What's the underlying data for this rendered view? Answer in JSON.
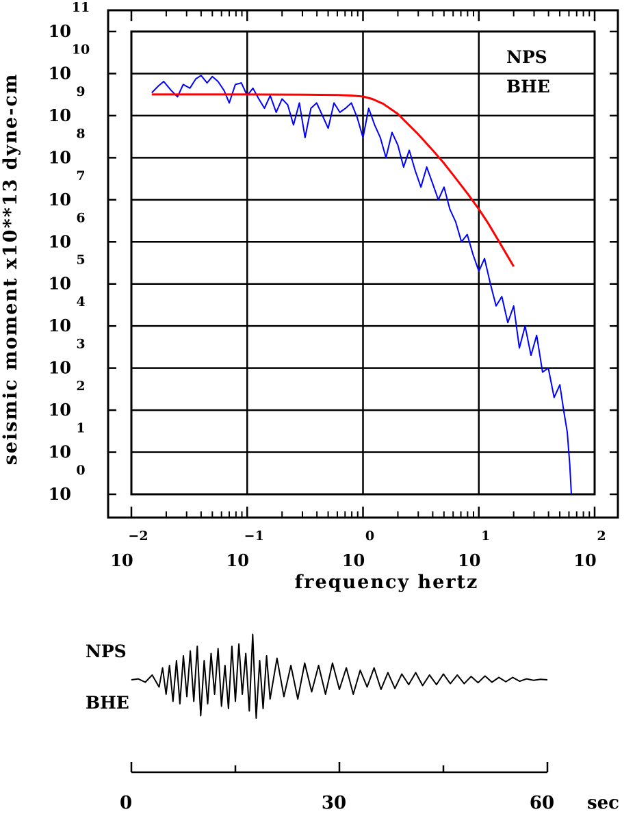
{
  "chart_data": [
    {
      "type": "line",
      "xlabel": "frequency hertz",
      "ylabel": "seismic moment x10**13 dyne-cm",
      "x_scale": "log",
      "y_scale": "log",
      "xlim": [
        0.01,
        100
      ],
      "ylim": [
        1,
        100000000000
      ],
      "x_ticks": [
        {
          "base": "10",
          "exp": "−2"
        },
        {
          "base": "10",
          "exp": "−1"
        },
        {
          "base": "10",
          "exp": "0"
        },
        {
          "base": "10",
          "exp": "1"
        },
        {
          "base": "10",
          "exp": "2"
        }
      ],
      "y_ticks": [
        {
          "base": "10",
          "exp": "0"
        },
        {
          "base": "10",
          "exp": "1"
        },
        {
          "base": "10",
          "exp": "2"
        },
        {
          "base": "10",
          "exp": "3"
        },
        {
          "base": "10",
          "exp": "4"
        },
        {
          "base": "10",
          "exp": "5"
        },
        {
          "base": "10",
          "exp": "6"
        },
        {
          "base": "10",
          "exp": "7"
        },
        {
          "base": "10",
          "exp": "8"
        },
        {
          "base": "10",
          "exp": "9"
        },
        {
          "base": "10",
          "exp": "10"
        },
        {
          "base": "10",
          "exp": "11"
        }
      ],
      "grid": true,
      "annotations": [
        "NPS",
        "BHE"
      ],
      "series": [
        {
          "color": "#0000ff",
          "x": [
            0.015,
            0.017,
            0.019,
            0.022,
            0.025,
            0.028,
            0.032,
            0.036,
            0.04,
            0.045,
            0.05,
            0.056,
            0.063,
            0.07,
            0.079,
            0.089,
            0.1,
            0.112,
            0.126,
            0.141,
            0.158,
            0.178,
            0.2,
            0.224,
            0.251,
            0.282,
            0.316,
            0.355,
            0.398,
            0.447,
            0.5,
            0.562,
            0.631,
            0.708,
            0.794,
            0.891,
            1.0,
            1.12,
            1.26,
            1.41,
            1.58,
            1.78,
            2.0,
            2.24,
            2.51,
            2.82,
            3.16,
            3.55,
            3.98,
            4.47,
            5.01,
            5.62,
            6.31,
            7.08,
            7.94,
            8.91,
            10.0,
            11.2,
            12.6,
            14.1,
            15.8,
            17.8,
            20.0,
            22.4,
            25.1,
            28.2,
            31.6,
            35.5,
            39.8,
            44.7,
            50.1,
            54.0,
            58.0,
            61.0,
            63.0
          ],
          "y": [
            3500000000.0,
            5000000000.0,
            6500000000.0,
            4000000000.0,
            2800000000.0,
            5500000000.0,
            4500000000.0,
            7500000000.0,
            9000000000.0,
            6000000000.0,
            8500000000.0,
            6500000000.0,
            4000000000.0,
            2000000000.0,
            5500000000.0,
            6000000000.0,
            3000000000.0,
            4500000000.0,
            2500000000.0,
            1500000000.0,
            3000000000.0,
            1200000000.0,
            2500000000.0,
            1800000000.0,
            600000000.0,
            2000000000.0,
            300000000.0,
            1500000000.0,
            2000000000.0,
            1000000000.0,
            500000000.0,
            2000000000.0,
            1200000000.0,
            1500000000.0,
            2000000000.0,
            900000000.0,
            300000000.0,
            1500000000.0,
            600000000.0,
            300000000.0,
            100000000.0,
            400000000.0,
            200000000.0,
            60000000.0,
            150000000.0,
            50000000.0,
            20000000.0,
            60000000.0,
            25000000.0,
            10000000.0,
            20000000.0,
            6000000.0,
            3000000.0,
            1000000.0,
            1500000.0,
            500000.0,
            200000.0,
            400000.0,
            100000.0,
            30000.0,
            50000.0,
            12000.0,
            30000.0,
            3000.0,
            10000.0,
            2000.0,
            6000.0,
            800.0,
            1000.0,
            200.0,
            400.0,
            100.0,
            30.0,
            5.0,
            1.0
          ]
        },
        {
          "color": "#ff0000",
          "x": [
            0.015,
            0.03,
            0.1,
            0.3,
            0.6,
            0.8,
            1.0,
            1.2,
            1.5,
            2.0,
            3.0,
            4.0,
            5.0,
            6.0,
            8.0,
            10.0,
            12.0,
            15.0,
            20.0
          ],
          "y": [
            3200000000.0,
            3200000000.0,
            3200000000.0,
            3150000000.0,
            3100000000.0,
            3000000000.0,
            2850000000.0,
            2500000000.0,
            1900000000.0,
            1100000000.0,
            360000000.0,
            150000000.0,
            74000000.0,
            39000000.0,
            14000000.0,
            6000000.0,
            2800000.0,
            1000000.0,
            260000.0
          ]
        }
      ]
    },
    {
      "type": "line",
      "xlabel": "sec",
      "xlim": [
        0,
        60
      ],
      "x_ticks": [
        "0",
        "30",
        "60"
      ],
      "annotations": [
        "NPS",
        "BHE"
      ],
      "series": [
        {
          "color": "#000000",
          "x": [
            0,
            1,
            2,
            3,
            4,
            4.5,
            5,
            5.5,
            6,
            6.5,
            7,
            7.5,
            8,
            8.5,
            9,
            9.5,
            10,
            10.5,
            11,
            11.5,
            12,
            12.5,
            13,
            13.5,
            14,
            14.5,
            15,
            15.5,
            16,
            16.5,
            17,
            17.5,
            18,
            18.5,
            19,
            19.5,
            20,
            21,
            22,
            23,
            24,
            25,
            26,
            27,
            28,
            29,
            30,
            31,
            32,
            33,
            34,
            35,
            36,
            37,
            38,
            39,
            40,
            41,
            42,
            43,
            44,
            45,
            46,
            47,
            48,
            49,
            50,
            51,
            52,
            53,
            54,
            55,
            56,
            57,
            58,
            59,
            60
          ],
          "y": [
            0,
            0.02,
            -0.05,
            0.1,
            -0.15,
            0.25,
            -0.3,
            0.3,
            -0.45,
            0.4,
            -0.5,
            0.5,
            -0.35,
            0.6,
            -0.45,
            0.7,
            -0.75,
            0.4,
            -0.5,
            0.55,
            -0.3,
            0.65,
            -0.55,
            0.3,
            -0.6,
            0.7,
            -0.45,
            0.75,
            -0.3,
            0.55,
            -0.65,
            0.95,
            -0.8,
            0.4,
            -0.6,
            0.5,
            -0.4,
            0.45,
            -0.35,
            0.3,
            -0.4,
            0.35,
            -0.25,
            0.3,
            -0.3,
            0.35,
            -0.2,
            0.25,
            -0.3,
            0.2,
            -0.15,
            0.25,
            -0.2,
            0.15,
            -0.18,
            0.12,
            -0.1,
            0.15,
            -0.12,
            0.1,
            -0.1,
            0.12,
            -0.08,
            0.1,
            -0.08,
            0.07,
            -0.06,
            0.08,
            -0.05,
            0.05,
            -0.04,
            0.05,
            -0.03,
            0.02,
            -0.01,
            0.01,
            0
          ]
        }
      ]
    }
  ]
}
